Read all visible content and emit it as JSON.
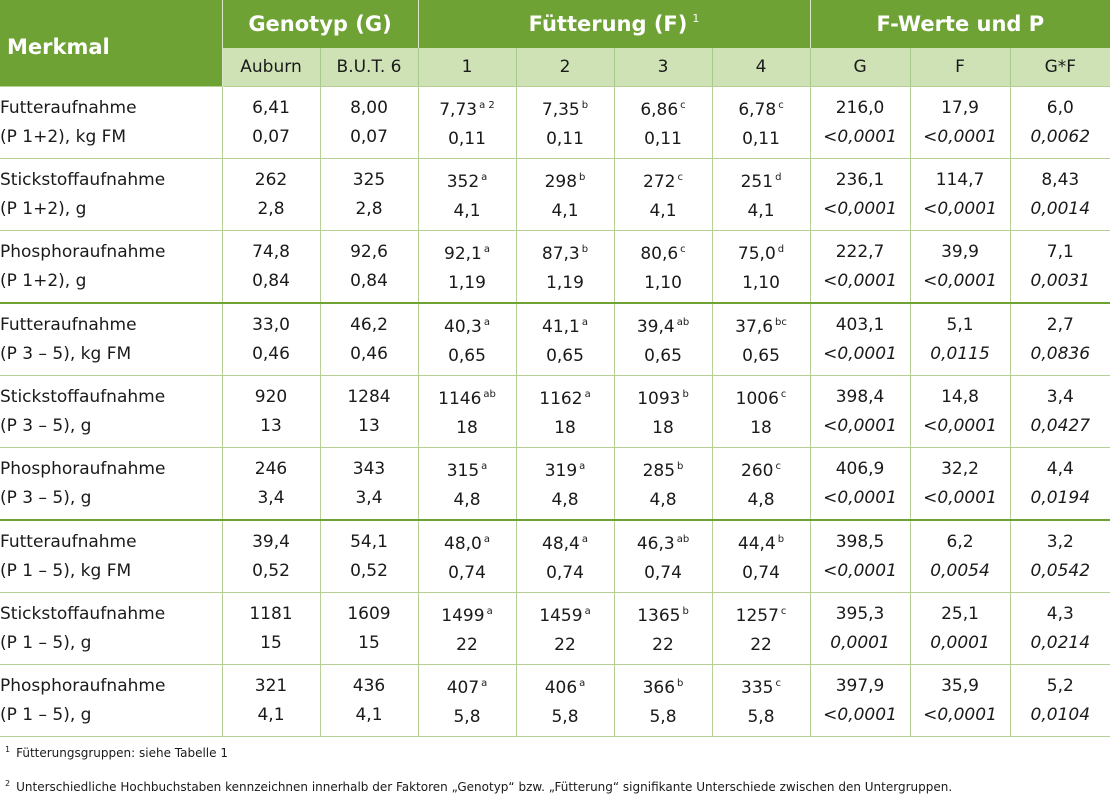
{
  "header": {
    "merkmal": "Merkmal",
    "genotyp": "Genotyp (G)",
    "fuetterung": "Fütterung (F)",
    "fuetterung_sup": "1",
    "fwerte": "F-Werte und P",
    "sub": [
      "Auburn",
      "B.U.T. 6",
      "1",
      "2",
      "3",
      "4",
      "G",
      "F",
      "G*F"
    ]
  },
  "rows": [
    {
      "label1": "Futteraufnahme",
      "label2": "(P 1+2), kg FM",
      "cells": [
        {
          "v1": "6,41",
          "s": "",
          "v2": "0,07"
        },
        {
          "v1": "8,00",
          "s": "",
          "v2": "0,07"
        },
        {
          "v1": "7,73",
          "s": "a 2",
          "v2": "0,11"
        },
        {
          "v1": "7,35",
          "s": "b",
          "v2": "0,11"
        },
        {
          "v1": "6,86",
          "s": "c",
          "v2": "0,11"
        },
        {
          "v1": "6,78",
          "s": "c",
          "v2": "0,11"
        },
        {
          "v1": "216,0",
          "s": "",
          "v2": "<0,0001"
        },
        {
          "v1": "17,9",
          "s": "",
          "v2": "<0,0001"
        },
        {
          "v1": "6,0",
          "s": "",
          "v2": "0,0062"
        }
      ]
    },
    {
      "label1": "Stickstoffaufnahme",
      "label2": "(P 1+2), g",
      "cells": [
        {
          "v1": "262",
          "s": "",
          "v2": "2,8"
        },
        {
          "v1": "325",
          "s": "",
          "v2": "2,8"
        },
        {
          "v1": "352",
          "s": "a",
          "v2": "4,1"
        },
        {
          "v1": "298",
          "s": "b",
          "v2": "4,1"
        },
        {
          "v1": "272",
          "s": "c",
          "v2": "4,1"
        },
        {
          "v1": "251",
          "s": "d",
          "v2": "4,1"
        },
        {
          "v1": "236,1",
          "s": "",
          "v2": "<0,0001"
        },
        {
          "v1": "114,7",
          "s": "",
          "v2": "<0,0001"
        },
        {
          "v1": "8,43",
          "s": "",
          "v2": "0,0014"
        }
      ]
    },
    {
      "label1": "Phosphoraufnahme",
      "label2": "(P 1+2), g",
      "cells": [
        {
          "v1": "74,8",
          "s": "",
          "v2": "0,84"
        },
        {
          "v1": "92,6",
          "s": "",
          "v2": "0,84"
        },
        {
          "v1": "92,1",
          "s": "a",
          "v2": "1,19"
        },
        {
          "v1": "87,3",
          "s": "b",
          "v2": "1,19"
        },
        {
          "v1": "80,6",
          "s": "c",
          "v2": "1,10"
        },
        {
          "v1": "75,0",
          "s": "d",
          "v2": "1,10"
        },
        {
          "v1": "222,7",
          "s": "",
          "v2": "<0,0001"
        },
        {
          "v1": "39,9",
          "s": "",
          "v2": "<0,0001"
        },
        {
          "v1": "7,1",
          "s": "",
          "v2": "0,0031"
        }
      ]
    },
    {
      "label1": "Futteraufnahme",
      "label2": "(P 3 – 5), kg FM",
      "cells": [
        {
          "v1": "33,0",
          "s": "",
          "v2": "0,46"
        },
        {
          "v1": "46,2",
          "s": "",
          "v2": "0,46"
        },
        {
          "v1": "40,3",
          "s": "a",
          "v2": "0,65"
        },
        {
          "v1": "41,1",
          "s": "a",
          "v2": "0,65"
        },
        {
          "v1": "39,4",
          "s": "ab",
          "v2": "0,65"
        },
        {
          "v1": "37,6",
          "s": "bc",
          "v2": "0,65"
        },
        {
          "v1": "403,1",
          "s": "",
          "v2": "<0,0001"
        },
        {
          "v1": "5,1",
          "s": "",
          "v2": "0,0115"
        },
        {
          "v1": "2,7",
          "s": "",
          "v2": "0,0836"
        }
      ]
    },
    {
      "label1": "Stickstoffaufnahme",
      "label2": "(P 3 – 5), g",
      "cells": [
        {
          "v1": "920",
          "s": "",
          "v2": "13"
        },
        {
          "v1": "1284",
          "s": "",
          "v2": "13"
        },
        {
          "v1": "1146",
          "s": "ab",
          "v2": "18"
        },
        {
          "v1": "1162",
          "s": "a",
          "v2": "18"
        },
        {
          "v1": "1093",
          "s": "b",
          "v2": "18"
        },
        {
          "v1": "1006",
          "s": "c",
          "v2": "18"
        },
        {
          "v1": "398,4",
          "s": "",
          "v2": "<0,0001"
        },
        {
          "v1": "14,8",
          "s": "",
          "v2": "<0,0001"
        },
        {
          "v1": "3,4",
          "s": "",
          "v2": "0,0427"
        }
      ]
    },
    {
      "label1": "Phosphoraufnahme",
      "label2": "(P 3 – 5), g",
      "cells": [
        {
          "v1": "246",
          "s": "",
          "v2": "3,4"
        },
        {
          "v1": "343",
          "s": "",
          "v2": "3,4"
        },
        {
          "v1": "315",
          "s": "a",
          "v2": "4,8"
        },
        {
          "v1": "319",
          "s": "a",
          "v2": "4,8"
        },
        {
          "v1": "285",
          "s": "b",
          "v2": "4,8"
        },
        {
          "v1": "260",
          "s": "c",
          "v2": "4,8"
        },
        {
          "v1": "406,9",
          "s": "",
          "v2": "<0,0001"
        },
        {
          "v1": "32,2",
          "s": "",
          "v2": "<0,0001"
        },
        {
          "v1": "4,4",
          "s": "",
          "v2": "0,0194"
        }
      ]
    },
    {
      "label1": "Futteraufnahme",
      "label2": "(P 1 – 5), kg FM",
      "cells": [
        {
          "v1": "39,4",
          "s": "",
          "v2": "0,52"
        },
        {
          "v1": "54,1",
          "s": "",
          "v2": "0,52"
        },
        {
          "v1": "48,0",
          "s": "a",
          "v2": "0,74"
        },
        {
          "v1": "48,4",
          "s": "a",
          "v2": "0,74"
        },
        {
          "v1": "46,3",
          "s": "ab",
          "v2": "0,74"
        },
        {
          "v1": "44,4",
          "s": "b",
          "v2": "0,74"
        },
        {
          "v1": "398,5",
          "s": "",
          "v2": "<0,0001"
        },
        {
          "v1": "6,2",
          "s": "",
          "v2": "0,0054"
        },
        {
          "v1": "3,2",
          "s": "",
          "v2": "0,0542"
        }
      ]
    },
    {
      "label1": "Stickstoffaufnahme",
      "label2": "(P 1 – 5), g",
      "cells": [
        {
          "v1": "1181",
          "s": "",
          "v2": "15"
        },
        {
          "v1": "1609",
          "s": "",
          "v2": "15"
        },
        {
          "v1": "1499",
          "s": "a",
          "v2": "22"
        },
        {
          "v1": "1459",
          "s": "a",
          "v2": "22"
        },
        {
          "v1": "1365",
          "s": "b",
          "v2": "22"
        },
        {
          "v1": "1257",
          "s": "c",
          "v2": "22"
        },
        {
          "v1": "395,3",
          "s": "",
          "v2": "0,0001"
        },
        {
          "v1": "25,1",
          "s": "",
          "v2": "0,0001"
        },
        {
          "v1": "4,3",
          "s": "",
          "v2": "0,0214"
        }
      ]
    },
    {
      "label1": "Phosphoraufnahme",
      "label2": "(P 1 – 5), g",
      "cells": [
        {
          "v1": "321",
          "s": "",
          "v2": "4,1"
        },
        {
          "v1": "436",
          "s": "",
          "v2": "4,1"
        },
        {
          "v1": "407",
          "s": "a",
          "v2": "5,8"
        },
        {
          "v1": "406",
          "s": "a",
          "v2": "5,8"
        },
        {
          "v1": "366",
          "s": "b",
          "v2": "5,8"
        },
        {
          "v1": "335",
          "s": "c",
          "v2": "5,8"
        },
        {
          "v1": "397,9",
          "s": "",
          "v2": "<0,0001"
        },
        {
          "v1": "35,9",
          "s": "",
          "v2": "<0,0001"
        },
        {
          "v1": "5,2",
          "s": "",
          "v2": "0,0104"
        }
      ]
    }
  ],
  "footnotes": [
    {
      "sup": "1",
      "text": "Fütterungsgruppen: siehe Tabelle 1"
    },
    {
      "sup": "2",
      "text": "Unterschiedliche Hochbuchstaben kennzeichnen innerhalb der Faktoren „Genotyp“ bzw. „Fütterung“ signifikante Unterschiede zwischen den Untergruppen."
    }
  ]
}
